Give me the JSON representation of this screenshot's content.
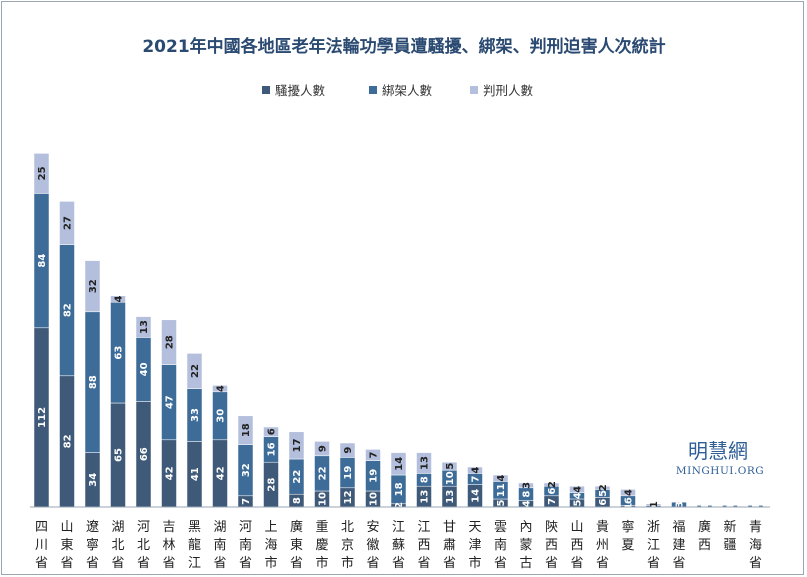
{
  "chart_data": {
    "type": "bar",
    "stacked": true,
    "title": "2021年中國各地區老年法輪功學員遭騷擾、綁架、判刑迫害人次統計",
    "legend_position": "top-center",
    "grid": false,
    "categories": [
      "四川省",
      "山東省",
      "遼寧省",
      "湖北省",
      "河北省",
      "吉林省",
      "黑龍江",
      "湖南省",
      "河南省",
      "上海市",
      "廣東省",
      "重慶市",
      "北京市",
      "安徽省",
      "江蘇省",
      "江西省",
      "甘肅省",
      "天津市",
      "雲南省",
      "內蒙古",
      "陝西省",
      "山西省",
      "貴州省",
      "寧夏",
      "浙江省",
      "福建省",
      "廣西",
      "新疆",
      "青海省"
    ],
    "series": [
      {
        "name": "騷擾人數",
        "color": "#3f5979",
        "values": [
          112,
          82,
          34,
          65,
          66,
          42,
          41,
          42,
          7,
          28,
          8,
          10,
          12,
          10,
          2,
          13,
          13,
          14,
          5,
          4,
          7,
          5,
          6,
          1,
          0,
          0,
          0,
          0,
          0
        ]
      },
      {
        "name": "綁架人數",
        "color": "#3e6c98",
        "values": [
          84,
          82,
          88,
          63,
          40,
          47,
          33,
          30,
          32,
          16,
          22,
          22,
          19,
          19,
          18,
          8,
          10,
          7,
          11,
          8,
          6,
          4,
          5,
          6,
          1,
          3,
          1,
          1,
          1
        ]
      },
      {
        "name": "判刑人數",
        "color": "#b3bfdc",
        "values": [
          25,
          27,
          32,
          4,
          13,
          28,
          22,
          4,
          18,
          6,
          17,
          9,
          9,
          7,
          14,
          13,
          5,
          4,
          4,
          3,
          2,
          4,
          2,
          4,
          1,
          0,
          0,
          0,
          0
        ]
      }
    ]
  },
  "watermark": {
    "cn": "明慧網",
    "en": "MINGHUI.ORG"
  }
}
